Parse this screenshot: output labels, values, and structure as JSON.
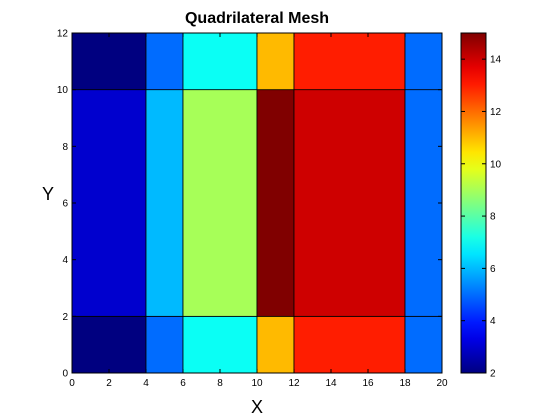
{
  "chart_data": {
    "type": "heatmap",
    "title": "Quadrilateral Mesh",
    "xlabel": "X",
    "ylabel": "Y",
    "xlim": [
      0,
      20
    ],
    "ylim": [
      0,
      12
    ],
    "xticks": [
      "0",
      "2",
      "4",
      "6",
      "8",
      "10",
      "12",
      "14",
      "16",
      "18",
      "20"
    ],
    "yticks": [
      "0",
      "2",
      "4",
      "6",
      "8",
      "10",
      "12"
    ],
    "x_edges": [
      0,
      4,
      6,
      10,
      12,
      18,
      20
    ],
    "y_edges": [
      0,
      2,
      10,
      12
    ],
    "values": [
      [
        2,
        5,
        7,
        11,
        13,
        5
      ],
      [
        3,
        6,
        9,
        15,
        14,
        5
      ],
      [
        2,
        5,
        7,
        11,
        13,
        5
      ]
    ],
    "colorbar": {
      "min": 2,
      "max": 15,
      "ticks": [
        "2",
        "4",
        "6",
        "8",
        "10",
        "12",
        "14"
      ]
    },
    "colormap": "jet",
    "grid": false,
    "legend": "none"
  }
}
